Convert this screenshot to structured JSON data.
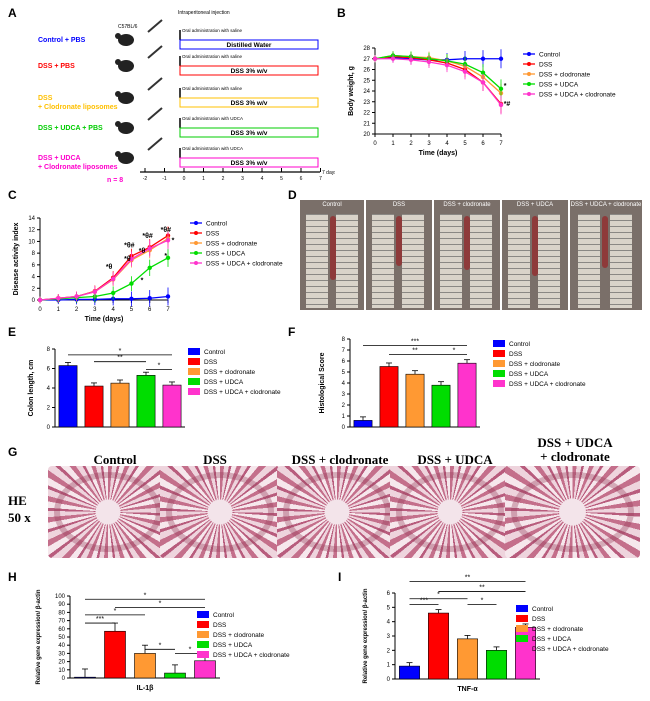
{
  "panels": {
    "A": "A",
    "B": "B",
    "C": "C",
    "D": "D",
    "E": "E",
    "F": "F",
    "G": "G",
    "H": "H",
    "I": "I"
  },
  "design": {
    "mouse_label": "C57BL/6",
    "ip_label": "Intraperitoneal injection",
    "n_label": "n = 8",
    "days_label": "7 days",
    "ticks": [
      "-2",
      "-1",
      "0",
      "1",
      "2",
      "3",
      "4",
      "5",
      "6",
      "7"
    ],
    "groups": [
      {
        "name": "Control + PBS",
        "color": "#0000ff",
        "admin": "Oral administration with saline",
        "box": "Distilled Water"
      },
      {
        "name": "DSS + PBS",
        "color": "#ff0000",
        "admin": "Oral administration with saline",
        "box": "DSS 3% w/v"
      },
      {
        "name": "DSS\n+ Clodronate liposomes",
        "color": "#ffc000",
        "admin": "Oral administration with saline",
        "box": "DSS 3% w/v"
      },
      {
        "name": "DSS + UDCA + PBS",
        "color": "#00cc00",
        "admin": "Oral administration with UDCA",
        "box": "DSS 3% w/v"
      },
      {
        "name": "DSS + UDCA\n+ Clodronate liposomes",
        "color": "#ff00cc",
        "admin": "Oral administration with UDCA",
        "box": "DSS 3% w/v"
      }
    ]
  },
  "legend_groups": [
    "Control",
    "DSS",
    "DSS + clodronate",
    "DSS + UDCA",
    "DSS + UDCA + clodronate"
  ],
  "colors": {
    "control": "#0000ff",
    "dss": "#ff0000",
    "clod": "#ff9933",
    "udca": "#00dd00",
    "udcaclod": "#ff33cc"
  },
  "chart_data": [
    {
      "id": "B",
      "type": "line",
      "xlabel": "Time (days)",
      "ylabel": "Body weight, g",
      "x": [
        0,
        1,
        2,
        3,
        4,
        5,
        6,
        7
      ],
      "ylim": [
        20,
        28
      ],
      "yticks": [
        20,
        21,
        22,
        23,
        24,
        25,
        26,
        27,
        28
      ],
      "series": [
        {
          "name": "Control",
          "values": [
            27.0,
            27.1,
            27.0,
            26.9,
            26.9,
            27.0,
            27.0,
            27.0
          ]
        },
        {
          "name": "DSS",
          "values": [
            27.0,
            27.2,
            27.1,
            26.9,
            26.6,
            26.0,
            24.8,
            22.8
          ]
        },
        {
          "name": "DSS + clodronate",
          "values": [
            27.0,
            27.3,
            27.2,
            27.1,
            26.8,
            26.3,
            25.3,
            23.8
          ]
        },
        {
          "name": "DSS + UDCA",
          "values": [
            27.0,
            27.3,
            27.2,
            27.0,
            26.8,
            26.5,
            25.7,
            24.2
          ]
        },
        {
          "name": "DSS + UDCA + clodronate",
          "values": [
            27.0,
            27.0,
            26.9,
            26.7,
            26.4,
            25.8,
            24.8,
            22.7
          ]
        }
      ],
      "annotations": [
        "*",
        "*#"
      ]
    },
    {
      "id": "C",
      "type": "line",
      "xlabel": "Time (days)",
      "ylabel": "Disease activity index",
      "x": [
        0,
        1,
        2,
        3,
        4,
        5,
        6,
        7
      ],
      "ylim": [
        0,
        14
      ],
      "yticks": [
        0,
        2,
        4,
        6,
        8,
        10,
        12,
        14
      ],
      "series": [
        {
          "name": "Control",
          "values": [
            0,
            0,
            0.1,
            0.1,
            0.2,
            0.2,
            0.3,
            0.6
          ]
        },
        {
          "name": "DSS",
          "values": [
            0,
            0.3,
            0.6,
            1.5,
            3.8,
            7.5,
            9.0,
            11.0
          ]
        },
        {
          "name": "DSS + clodronate",
          "values": [
            0,
            0.3,
            0.6,
            1.4,
            3.5,
            6.8,
            8.5,
            10.5
          ]
        },
        {
          "name": "DSS + UDCA",
          "values": [
            0,
            0.2,
            0.4,
            0.6,
            1.2,
            2.8,
            5.5,
            7.2
          ]
        },
        {
          "name": "DSS + UDCA + clodronate",
          "values": [
            0,
            0.3,
            0.6,
            1.4,
            3.6,
            7.0,
            8.8,
            10.2
          ]
        }
      ],
      "annotations": [
        "*θ",
        "*θ#",
        "*θ#",
        "*θ#",
        "*θ",
        "*θ",
        "*",
        "*",
        "*"
      ]
    },
    {
      "id": "E",
      "type": "bar",
      "ylabel": "Colon length, cm",
      "ylim": [
        0,
        8
      ],
      "yticks": [
        0,
        2,
        4,
        6,
        8
      ],
      "categories": [
        "Control",
        "DSS",
        "DSS + clodronate",
        "DSS + UDCA",
        "DSS + UDCA + clodronate"
      ],
      "values": [
        6.3,
        4.2,
        4.5,
        5.3,
        4.3
      ],
      "significance": [
        "*",
        "**",
        "*"
      ]
    },
    {
      "id": "F",
      "type": "bar",
      "ylabel": "Histological Score",
      "ylim": [
        0,
        8
      ],
      "yticks": [
        0,
        1,
        2,
        3,
        4,
        5,
        6,
        7,
        8
      ],
      "categories": [
        "Control",
        "DSS",
        "DSS + clodronate",
        "DSS + UDCA",
        "DSS + UDCA + clodronate"
      ],
      "values": [
        0.6,
        5.5,
        4.8,
        3.8,
        5.8
      ],
      "significance": [
        "***",
        "**",
        "*"
      ]
    },
    {
      "id": "H",
      "type": "bar",
      "ylabel": "Relative gene expression/ β-actin",
      "xlabel": "IL-1β",
      "ylim": [
        0,
        100
      ],
      "yticks": [
        0,
        10,
        20,
        30,
        40,
        50,
        60,
        70,
        80,
        90,
        100
      ],
      "categories": [
        "Control",
        "DSS",
        "DSS + clodronate",
        "DSS + UDCA",
        "DSS + UDCA + clodronate"
      ],
      "values": [
        1,
        57,
        30,
        6,
        21
      ],
      "significance": [
        "*",
        "*",
        "*",
        "***",
        "*",
        "*"
      ]
    },
    {
      "id": "I",
      "type": "bar",
      "ylabel": "Relative gene expression/ β-actin",
      "xlabel": "TNF-α",
      "ylim": [
        0,
        6
      ],
      "yticks": [
        0,
        1,
        2,
        3,
        4,
        5,
        6
      ],
      "categories": [
        "Control",
        "DSS",
        "DSS + clodronate",
        "DSS + UDCA",
        "DSS + UDCA + clodronate"
      ],
      "values": [
        0.9,
        4.6,
        2.8,
        2.0,
        3.6
      ],
      "significance": [
        "**",
        "**",
        "*",
        "***",
        "*"
      ]
    }
  ],
  "photos": {
    "colon_labels": [
      "Control",
      "DSS",
      "DSS + clodronate",
      "DSS + UDCA",
      "DSS + UDCA + clodronate"
    ],
    "histo_titles": [
      "Control",
      "DSS",
      "DSS + clodronate",
      "DSS + UDCA",
      "DSS + UDCA\n+ clodronate"
    ],
    "stain": "HE",
    "magnification": "50 x"
  }
}
